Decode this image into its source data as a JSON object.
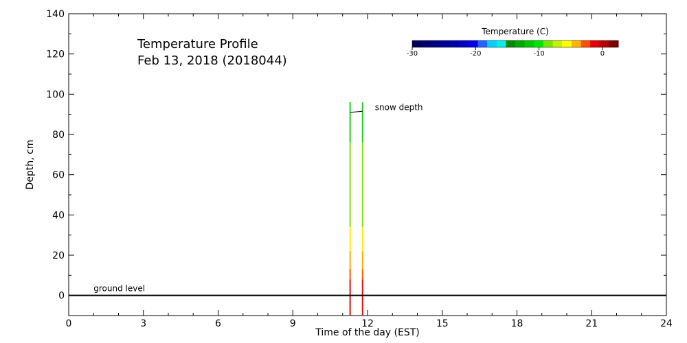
{
  "chart_data": {
    "type": "line",
    "title": "Temperature Profile",
    "subtitle": "Feb 13, 2018 (2018044)",
    "xlabel": "Time of the day (EST)",
    "ylabel": "Depth, cm",
    "xlim": [
      0,
      24
    ],
    "ylim": [
      -10,
      140
    ],
    "x_ticks": [
      0,
      3,
      6,
      9,
      12,
      15,
      18,
      21,
      24
    ],
    "y_ticks": [
      0,
      20,
      40,
      60,
      80,
      100,
      120,
      140
    ],
    "ground_level": {
      "label": "ground level",
      "depth": 0
    },
    "snow_depth": {
      "label": "snow depth",
      "points": [
        {
          "x": 11.3,
          "y": 91
        },
        {
          "x": 11.8,
          "y": 91.5
        }
      ]
    },
    "profiles": [
      {
        "time": 11.3,
        "segments": [
          {
            "from": -10,
            "to": 8,
            "color": "#dd1010"
          },
          {
            "from": 8,
            "to": 13,
            "color": "#ff5a00"
          },
          {
            "from": 13,
            "to": 22,
            "color": "#ffaa00"
          },
          {
            "from": 22,
            "to": 34,
            "color": "#ffee00"
          },
          {
            "from": 34,
            "to": 76,
            "color": "#88dd10"
          },
          {
            "from": 76,
            "to": 96,
            "color": "#22cc22"
          }
        ]
      },
      {
        "time": 11.8,
        "segments": [
          {
            "from": -10,
            "to": 8,
            "color": "#dd1010"
          },
          {
            "from": 8,
            "to": 13,
            "color": "#ff5a00"
          },
          {
            "from": 13,
            "to": 22,
            "color": "#ffaa00"
          },
          {
            "from": 22,
            "to": 34,
            "color": "#ffee00"
          },
          {
            "from": 34,
            "to": 76,
            "color": "#88dd10"
          },
          {
            "from": 76,
            "to": 96,
            "color": "#22cc22"
          }
        ]
      }
    ],
    "colorbar": {
      "title": "Temperature (C)",
      "ticks": [
        {
          "value": -30,
          "label": "-30"
        },
        {
          "value": -20,
          "label": "-20"
        },
        {
          "value": -10,
          "label": "-10"
        },
        {
          "value": 0,
          "label": "0"
        }
      ],
      "range": [
        -30,
        2.5
      ],
      "colors": [
        "#00005a",
        "#00006e",
        "#000082",
        "#000096",
        "#0000aa",
        "#0000c8",
        "#0000e6",
        "#1e64ff",
        "#00d2ff",
        "#00f0f0",
        "#008c00",
        "#00aa00",
        "#00c800",
        "#00e600",
        "#78e600",
        "#c8f000",
        "#ffff00",
        "#ffb400",
        "#ff5000",
        "#e60000",
        "#b40000",
        "#780000"
      ]
    }
  }
}
